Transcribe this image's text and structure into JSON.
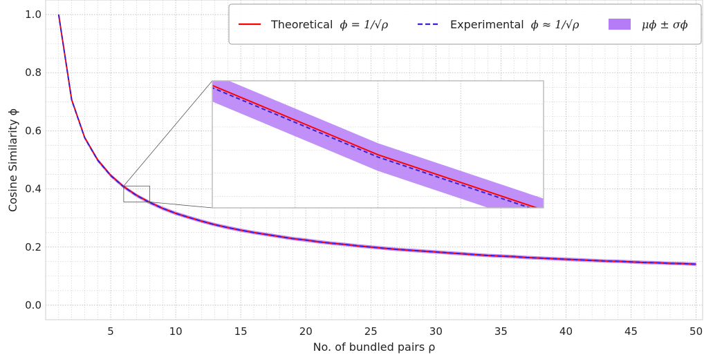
{
  "chart_data": {
    "type": "line",
    "xlabel": "No. of bundled pairs ρ",
    "ylabel": "Cosine Similarity ϕ",
    "xlim": [
      0,
      50.5
    ],
    "ylim": [
      -0.05,
      1.05
    ],
    "xticks": [
      5,
      10,
      15,
      20,
      25,
      30,
      35,
      40,
      45,
      50
    ],
    "xtick_labels": [
      "5",
      "10",
      "15",
      "20",
      "25",
      "30",
      "35",
      "40",
      "45",
      "50"
    ],
    "yticks": [
      0.0,
      0.2,
      0.4,
      0.6,
      0.8,
      1.0
    ],
    "ytick_labels": [
      "0.0",
      "0.2",
      "0.4",
      "0.6",
      "0.8",
      "1.0"
    ],
    "grid": true,
    "legend_position": "top-right",
    "x": [
      1,
      2,
      3,
      4,
      5,
      6,
      7,
      8,
      9,
      10,
      11,
      12,
      13,
      14,
      15,
      16,
      17,
      18,
      19,
      20,
      21,
      22,
      23,
      24,
      25,
      26,
      27,
      28,
      29,
      30,
      31,
      32,
      33,
      34,
      35,
      36,
      37,
      38,
      39,
      40,
      41,
      42,
      43,
      44,
      45,
      46,
      47,
      48,
      49,
      50
    ],
    "series": [
      {
        "name": "Theoretical",
        "legend_text": "Theoretical",
        "legend_math": "ϕ = 1/√ρ",
        "style": "solid",
        "color": "#ff0000",
        "values": [
          1.0,
          0.707,
          0.577,
          0.5,
          0.447,
          0.408,
          0.378,
          0.354,
          0.333,
          0.316,
          0.302,
          0.289,
          0.277,
          0.267,
          0.258,
          0.25,
          0.243,
          0.236,
          0.229,
          0.224,
          0.218,
          0.213,
          0.209,
          0.204,
          0.2,
          0.196,
          0.192,
          0.189,
          0.186,
          0.183,
          0.18,
          0.177,
          0.174,
          0.171,
          0.169,
          0.167,
          0.164,
          0.162,
          0.16,
          0.158,
          0.156,
          0.154,
          0.152,
          0.151,
          0.149,
          0.147,
          0.146,
          0.144,
          0.143,
          0.141
        ]
      },
      {
        "name": "Experimental",
        "legend_text": "Experimental",
        "legend_math": "ϕ ≈ 1/√ρ",
        "style": "dashed",
        "color": "#3a1fd1",
        "values": [
          1.0,
          0.706,
          0.576,
          0.499,
          0.446,
          0.407,
          0.377,
          0.353,
          0.333,
          0.316,
          0.302,
          0.289,
          0.277,
          0.267,
          0.258,
          0.25,
          0.243,
          0.236,
          0.229,
          0.224,
          0.218,
          0.213,
          0.209,
          0.204,
          0.2,
          0.196,
          0.192,
          0.189,
          0.186,
          0.183,
          0.18,
          0.177,
          0.174,
          0.171,
          0.169,
          0.167,
          0.164,
          0.162,
          0.16,
          0.158,
          0.156,
          0.154,
          0.152,
          0.151,
          0.149,
          0.147,
          0.146,
          0.144,
          0.143,
          0.141
        ]
      }
    ],
    "band": {
      "name": "μϕ ± σϕ",
      "legend_math": "μϕ ± σϕ",
      "color": "#b57cf7",
      "half_width": 0.006
    },
    "inset": {
      "xlim": [
        6,
        8
      ],
      "ylim": [
        0.355,
        0.41
      ],
      "grid": true
    }
  }
}
